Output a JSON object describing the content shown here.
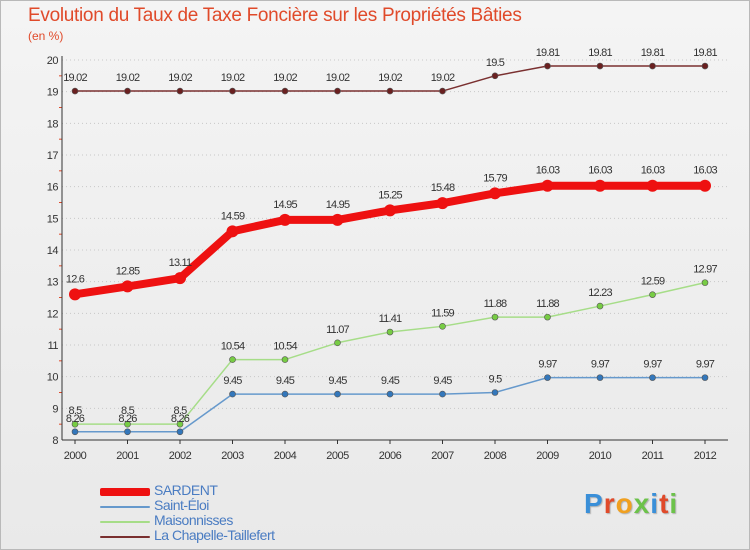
{
  "header": {
    "title": "Evolution du Taux de Taxe Foncière sur les Propriétés Bâties",
    "subtitle": "(en %)"
  },
  "logo": {
    "text": "Proxiti",
    "colors": [
      "#3a8fd8",
      "#e04a2a",
      "#f0a020",
      "#6cc24a",
      "#3a8fd8",
      "#e04a2a",
      "#6cc24a"
    ]
  },
  "chart_data": {
    "type": "line",
    "title": "Evolution du Taux de Taxe Foncière sur les Propriétés Bâties",
    "ylabel": "(en %)",
    "xlabel": "",
    "ylim": [
      8,
      20
    ],
    "yticks": [
      8,
      9,
      10,
      11,
      12,
      13,
      14,
      15,
      16,
      17,
      18,
      19,
      20
    ],
    "categories": [
      "2000",
      "2001",
      "2002",
      "2003",
      "2004",
      "2005",
      "2006",
      "2007",
      "2008",
      "2009",
      "2010",
      "2011",
      "2012"
    ],
    "grid": "horizontal dotted",
    "legend_position": "bottom-left",
    "series": [
      {
        "name": "SARDENT",
        "color": "#ee1111",
        "marker": "#ee1111",
        "width": 8,
        "values": [
          12.6,
          12.85,
          13.11,
          14.59,
          14.95,
          14.95,
          15.25,
          15.48,
          15.79,
          16.03,
          16.03,
          16.03,
          16.03
        ],
        "labels": [
          "12.6",
          "12.85",
          "13.11",
          "14.59",
          "14.95",
          "14.95",
          "15.25",
          "15.48",
          "15.79",
          "16.03",
          "16.03",
          "16.03",
          "16.03"
        ]
      },
      {
        "name": "Saint-Éloi",
        "color": "#6699cc",
        "marker": "#3377bb",
        "width": 1.5,
        "values": [
          8.26,
          8.26,
          8.26,
          9.45,
          9.45,
          9.45,
          9.45,
          9.45,
          9.5,
          9.97,
          9.97,
          9.97,
          9.97
        ],
        "labels": [
          "8.26",
          "8.26",
          "8.26",
          "9.45",
          "9.45",
          "9.45",
          "9.45",
          "9.45",
          "9.5",
          "9.97",
          "9.97",
          "9.97",
          "9.97"
        ]
      },
      {
        "name": "Maisonnisses",
        "color": "#a6dd88",
        "marker": "#77cc44",
        "width": 1.5,
        "values": [
          8.5,
          8.5,
          8.5,
          10.54,
          10.54,
          11.07,
          11.41,
          11.59,
          11.88,
          11.88,
          12.23,
          12.59,
          12.97
        ],
        "labels": [
          "8.5",
          "8.5",
          "8.5",
          "10.54",
          "10.54",
          "11.07",
          "11.41",
          "11.59",
          "11.88",
          "11.88",
          "12.23",
          "12.59",
          "12.97"
        ]
      },
      {
        "name": "La Chapelle-Taillefert",
        "color": "#7a3030",
        "marker": "#6a2020",
        "width": 1.5,
        "values": [
          19.02,
          19.02,
          19.02,
          19.02,
          19.02,
          19.02,
          19.02,
          19.02,
          19.5,
          19.81,
          19.81,
          19.81,
          19.81
        ],
        "labels": [
          "19.02",
          "19.02",
          "19.02",
          "19.02",
          "19.02",
          "19.02",
          "19.02",
          "19.02",
          "19.5",
          "19.81",
          "19.81",
          "19.81",
          "19.81"
        ]
      }
    ]
  }
}
